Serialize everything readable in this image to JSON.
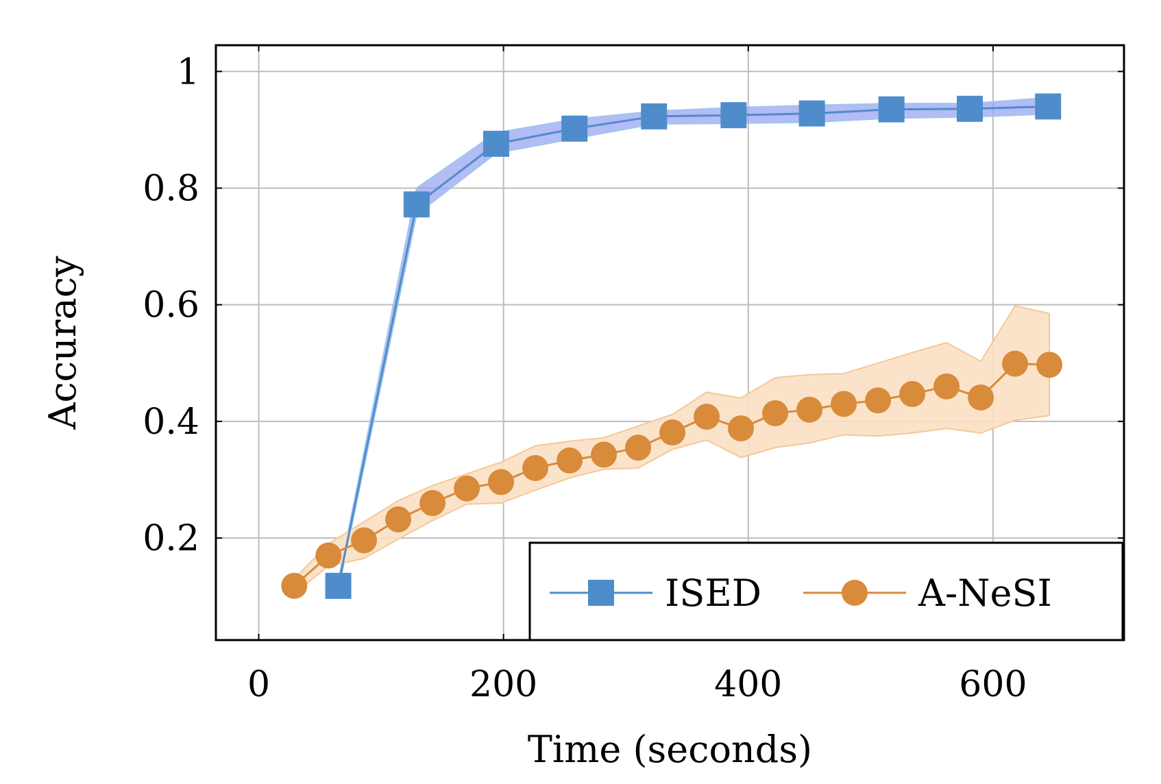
{
  "chart_data": {
    "type": "line",
    "title": "",
    "xlabel": "Time (seconds)",
    "ylabel": "Accuracy",
    "xlim": [
      -35,
      707
    ],
    "ylim": [
      0.025,
      1.045
    ],
    "xticks": [
      0,
      200,
      400,
      600
    ],
    "xtick_labels": [
      "0",
      "200",
      "400",
      "600"
    ],
    "yticks": [
      0.2,
      0.4,
      0.6,
      0.8,
      1.0
    ],
    "ytick_labels": [
      "0.2",
      "0.4",
      "0.6",
      "0.8",
      "1"
    ],
    "grid": true,
    "legend_position": "bottom-right",
    "series": [
      {
        "name": "ISED",
        "color": "#4f8ccc",
        "band_color": "#9aa6f2",
        "band_edge_color": "#9ec6ee",
        "marker": "square",
        "x": [
          65,
          129,
          194,
          258,
          323,
          388,
          452,
          517,
          581,
          645
        ],
        "y": [
          0.118,
          0.772,
          0.876,
          0.902,
          0.923,
          0.925,
          0.928,
          0.935,
          0.936,
          0.94
        ],
        "lower": [
          0.11,
          0.755,
          0.86,
          0.885,
          0.91,
          0.911,
          0.913,
          0.92,
          0.922,
          0.927
        ],
        "upper": [
          0.126,
          0.8,
          0.895,
          0.918,
          0.932,
          0.938,
          0.942,
          0.945,
          0.945,
          0.955
        ]
      },
      {
        "name": "A-NeSI",
        "color": "#d88b3b",
        "band_color": "#fbe0c4",
        "band_edge_color": "#f4c896",
        "marker": "circle",
        "x": [
          29,
          57,
          86,
          114,
          142,
          170,
          198,
          226,
          254,
          282,
          310,
          338,
          366,
          394,
          422,
          450,
          478,
          506,
          534,
          562,
          590,
          618,
          646
        ],
        "y": [
          0.118,
          0.17,
          0.196,
          0.232,
          0.26,
          0.285,
          0.296,
          0.32,
          0.333,
          0.343,
          0.355,
          0.381,
          0.408,
          0.388,
          0.414,
          0.42,
          0.43,
          0.436,
          0.447,
          0.46,
          0.441,
          0.499,
          0.497
        ],
        "lower": [
          0.105,
          0.152,
          0.165,
          0.198,
          0.23,
          0.258,
          0.26,
          0.282,
          0.303,
          0.318,
          0.32,
          0.352,
          0.368,
          0.338,
          0.355,
          0.363,
          0.377,
          0.375,
          0.38,
          0.388,
          0.38,
          0.402,
          0.41
        ],
        "upper": [
          0.13,
          0.19,
          0.228,
          0.264,
          0.29,
          0.31,
          0.33,
          0.358,
          0.366,
          0.372,
          0.392,
          0.412,
          0.45,
          0.44,
          0.475,
          0.48,
          0.482,
          0.5,
          0.518,
          0.535,
          0.503,
          0.598,
          0.585
        ]
      }
    ]
  }
}
